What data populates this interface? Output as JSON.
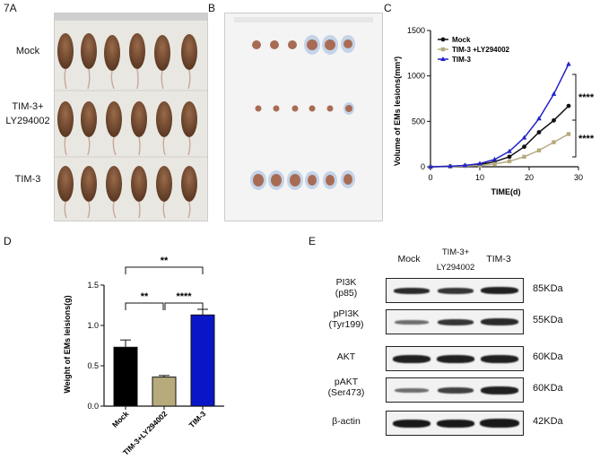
{
  "panels": {
    "A": {
      "letter": "7A",
      "rows": [
        "Mock",
        "TIM-3+",
        "LY294002",
        "TIM-3"
      ]
    },
    "B": {
      "letter": "B"
    },
    "C": {
      "letter": "C",
      "significance": [
        "****",
        "****"
      ]
    },
    "D": {
      "letter": "D",
      "significance": [
        "**",
        "**",
        "****"
      ]
    },
    "E": {
      "letter": "E",
      "lanes": [
        "Mock",
        "TIM-3+",
        "LY294002",
        "TIM-3"
      ],
      "proteins": [
        {
          "name": "PI3K",
          "sub": "(p85)",
          "kda": "85KDa"
        },
        {
          "name": "pPI3K",
          "sub": "(Tyr199)",
          "kda": "55KDa"
        },
        {
          "name": "AKT",
          "sub": "",
          "kda": "60KDa"
        },
        {
          "name": "pAKT",
          "sub": "(Ser473)",
          "kda": "60KDa"
        },
        {
          "name": "β-actin",
          "sub": "",
          "kda": "42KDa"
        }
      ]
    }
  },
  "chart_data": [
    {
      "type": "line",
      "xlabel": "TIME(d)",
      "ylabel": "Volume of EMs lesions(mm³)",
      "xlim": [
        0,
        30
      ],
      "ylim": [
        0,
        1500
      ],
      "xticks": [
        "0",
        "10",
        "20",
        "30"
      ],
      "yticks": [
        "0",
        "500",
        "1000",
        "1500"
      ],
      "x": [
        0,
        4,
        7,
        10,
        13,
        16,
        19,
        22,
        25,
        28
      ],
      "series": [
        {
          "name": "Mock",
          "color": "#111111",
          "values": [
            0,
            5,
            12,
            25,
            55,
            110,
            220,
            380,
            510,
            670
          ]
        },
        {
          "name": "TIM-3 +LY294002",
          "color": "#b5a97e",
          "values": [
            0,
            3,
            8,
            15,
            30,
            60,
            110,
            180,
            270,
            360
          ]
        },
        {
          "name": "TIM-3",
          "color": "#2323c8",
          "values": [
            0,
            6,
            15,
            35,
            80,
            170,
            320,
            530,
            800,
            1130
          ]
        }
      ],
      "legend_position": "top-left"
    },
    {
      "type": "bar",
      "ylabel": "Weight of EMs leisions(g)",
      "ylim": [
        0,
        1.5
      ],
      "yticks": [
        "0.0",
        "0.5",
        "1.0",
        "1.5"
      ],
      "categories": [
        "Mock",
        "TIM-3+LY294002",
        "TIM-3"
      ],
      "values": [
        0.73,
        0.36,
        1.13
      ],
      "errors": [
        0.09,
        0.02,
        0.07
      ],
      "colors": [
        "#000000",
        "#b7ab7b",
        "#0a15c8"
      ]
    }
  ]
}
